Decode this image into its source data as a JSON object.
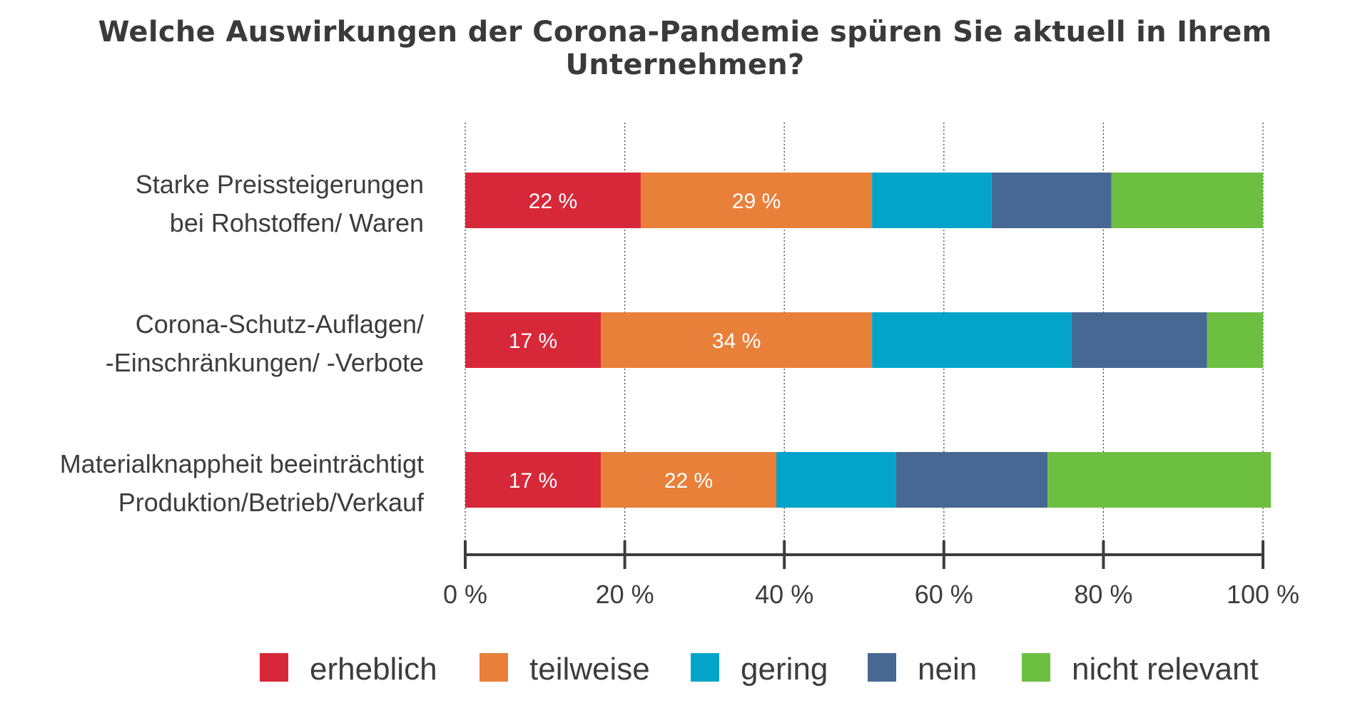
{
  "chart_data": {
    "type": "bar",
    "orientation": "horizontal",
    "stacked": true,
    "title": "Welche Auswirkungen der Corona-Pandemie spüren Sie aktuell in Ihrem Unternehmen?",
    "categories": [
      [
        "Starke Preissteigerungen",
        "bei Rohstoffen/ Waren"
      ],
      [
        "Corona-Schutz-Auflagen/",
        "-Einschränkungen/ -Verbote"
      ],
      [
        "Materialknappheit beeinträchtigt",
        "Produktion/Betrieb/Verkauf"
      ]
    ],
    "series": [
      {
        "name": "erheblich",
        "color": "#d62839",
        "values": [
          22,
          17,
          17
        ],
        "labels": [
          "22 %",
          "17 %",
          "17 %"
        ]
      },
      {
        "name": "teilweise",
        "color": "#e8803a",
        "values": [
          29,
          34,
          22
        ],
        "labels": [
          "29 %",
          "34 %",
          "22 %"
        ]
      },
      {
        "name": "gering",
        "color": "#04a3c9",
        "values": [
          15,
          25,
          15
        ],
        "labels": [
          "",
          "",
          ""
        ]
      },
      {
        "name": "nein",
        "color": "#466892",
        "values": [
          15,
          17,
          19
        ],
        "labels": [
          "",
          "",
          ""
        ]
      },
      {
        "name": "nicht relevant",
        "color": "#6dbf42",
        "values": [
          19,
          7,
          28
        ],
        "labels": [
          "",
          "",
          ""
        ]
      }
    ],
    "xlim": [
      0,
      100
    ],
    "xticks": [
      {
        "value": 0,
        "label": "0 %"
      },
      {
        "value": 20,
        "label": "20 %"
      },
      {
        "value": 40,
        "label": "40 %"
      },
      {
        "value": 60,
        "label": "60 %"
      },
      {
        "value": 80,
        "label": "80 %"
      },
      {
        "value": 100,
        "label": "100 %"
      }
    ],
    "grid": "vertical dotted",
    "legend": "bottom"
  }
}
